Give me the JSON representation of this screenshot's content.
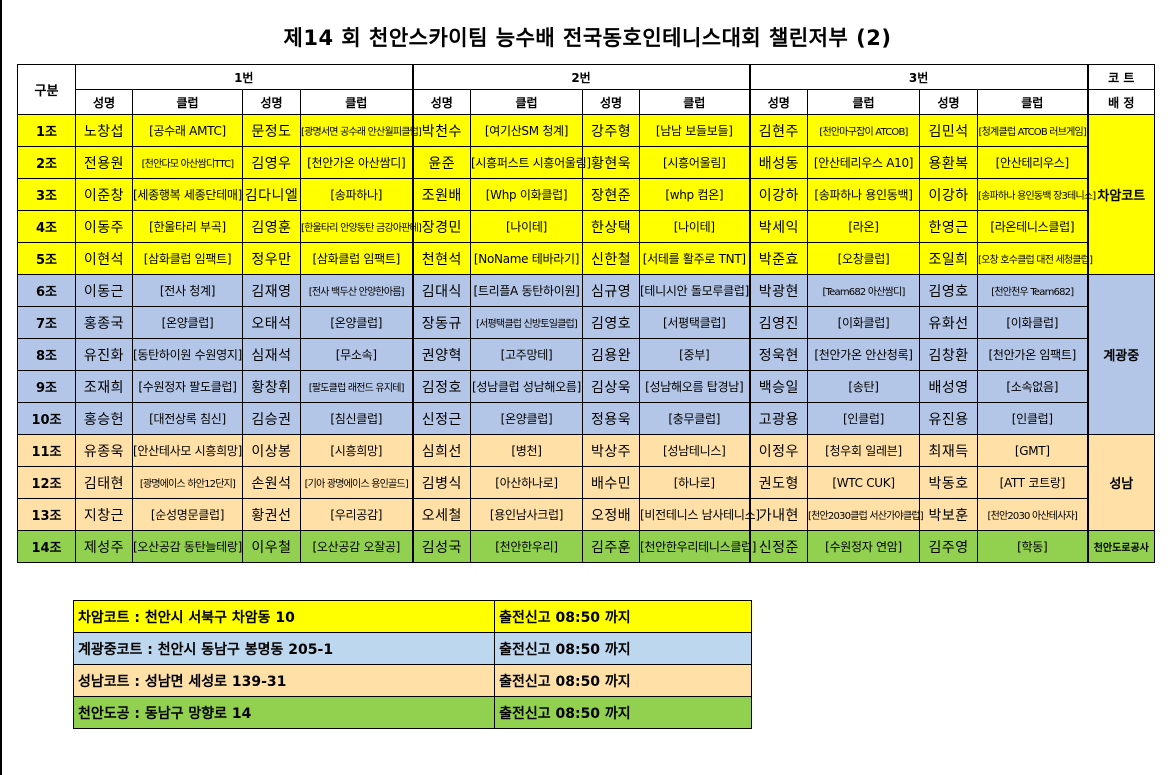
{
  "title": "제14 회 천안스카이팀 능수배 전국동호인테니스대회 챌린저부 (2)",
  "header": {
    "gubun": "구분",
    "groups": [
      "1번",
      "2번",
      "3번"
    ],
    "court_top": "코 트",
    "court_bottom": "배 정",
    "name": "성명",
    "club": "클럽"
  },
  "colors": {
    "yellow": "#ffff00",
    "blue": "#b4c6e7",
    "orange": "#ffe0a6",
    "green": "#92d050"
  },
  "rows": [
    {
      "group": "1조",
      "p1": "노창섭",
      "c1": "[공수래 AMTC]",
      "p2": "문정도",
      "c2": "[광명서면 공수래 안산월피클럽]",
      "p3": "박천수",
      "c3": "[여기산SM 청계]",
      "p4": "강주형",
      "c4": "[남남 보들보들]",
      "p5": "김현주",
      "c5": "[천안마구잡이 ATCOB]",
      "p6": "김민석",
      "c6": "[청계클럽 ATCOB 러브게임]"
    },
    {
      "group": "2조",
      "p1": "전용원",
      "c1": "[천안다모 아산쌈디TTC]",
      "p2": "김영우",
      "c2": "[천안가온 아산쌈디]",
      "p3": "윤준",
      "c3": "[시흥퍼스트 시흥어울림]",
      "p4": "황현욱",
      "c4": "[시흥어울림]",
      "p5": "배성동",
      "c5": "[안산테리우스 A10]",
      "p6": "용환복",
      "c6": "[안산테리우스]"
    },
    {
      "group": "3조",
      "p1": "이준창",
      "c1": "[세종행복 세종단테매]",
      "p2": "김다니엘",
      "c2": "[송파하나]",
      "p3": "조원배",
      "c3": "[Whp 이화클럽]",
      "p4": "장현준",
      "c4": "[whp 컴온]",
      "p5": "이강하",
      "c5": "[송파하나 용인동백]",
      "p6": "이강하",
      "c6": "[송파하나 용인동백 장3테니스]"
    },
    {
      "group": "4조",
      "p1": "이동주",
      "c1": "[한울타리 부곡]",
      "p2": "김영훈",
      "c2": "[한울타리 안양동탄 금강아판테]",
      "p3": "장경민",
      "c3": "[나이테]",
      "p4": "한상택",
      "c4": "[나이테]",
      "p5": "박세익",
      "c5": "[라온]",
      "p6": "한영근",
      "c6": "[라온테니스클럽]"
    },
    {
      "group": "5조",
      "p1": "이현석",
      "c1": "[삼화클럽 임팩트]",
      "p2": "정우만",
      "c2": "[삼화클럽 임팩트]",
      "p3": "천현석",
      "c3": "[NoName 테바라기]",
      "p4": "신한철",
      "c4": "[서테를 활주로 TNT]",
      "p5": "박준효",
      "c5": "[오창클럽]",
      "p6": "조일희",
      "c6": "[오창 호수클럽 대전 세청클럽]"
    },
    {
      "group": "6조",
      "p1": "이동근",
      "c1": "[전사 청계]",
      "p2": "김재영",
      "c2": "[전사 백두산 안양한아름]",
      "p3": "김대식",
      "c3": "[트리플A 동탄하이원]",
      "p4": "심규영",
      "c4": "[테니시안 돌모루클럽]",
      "p5": "박광현",
      "c5": "[Team682 아산쌈디]",
      "p6": "김영호",
      "c6": "[천안천우 Team682]"
    },
    {
      "group": "7조",
      "p1": "홍종국",
      "c1": "[온양클럽]",
      "p2": "오태석",
      "c2": "[온양클럽]",
      "p3": "장동규",
      "c3": "[서평택클럽 신방토일클럽]",
      "p4": "김영호",
      "c4": "[서평택클럽]",
      "p5": "김영진",
      "c5": "[이화클럽]",
      "p6": "유화선",
      "c6": "[이화클럽]"
    },
    {
      "group": "8조",
      "p1": "유진화",
      "c1": "[동탄하이원 수원영지]",
      "p2": "심재석",
      "c2": "[무소속]",
      "p3": "권양혁",
      "c3": "[고주망테]",
      "p4": "김용완",
      "c4": "[중부]",
      "p5": "정욱현",
      "c5": "[천안가온 안산청록]",
      "p6": "김창환",
      "c6": "[천안가온 임팩트]"
    },
    {
      "group": "9조",
      "p1": "조재희",
      "c1": "[수원정자 팔도클럽]",
      "p2": "황창휘",
      "c2": "[팔도클럽 래전드 유지테]",
      "p3": "김정호",
      "c3": "[성남클럽 성남해오름]",
      "p4": "김상욱",
      "c4": "[성남해오름 탑경남]",
      "p5": "백승일",
      "c5": "[송탄]",
      "p6": "배성영",
      "c6": "[소속없음]"
    },
    {
      "group": "10조",
      "p1": "홍승헌",
      "c1": "[대전상록 침신]",
      "p2": "김승권",
      "c2": "[침신클럽]",
      "p3": "신정근",
      "c3": "[온양클럽]",
      "p4": "정용욱",
      "c4": "[충무클럽]",
      "p5": "고광용",
      "c5": "[인클럽]",
      "p6": "유진용",
      "c6": "[인클럽]"
    },
    {
      "group": "11조",
      "p1": "유종욱",
      "c1": "[안산테사모 시흥희망]",
      "p2": "이상봉",
      "c2": "[시흥희망]",
      "p3": "심희선",
      "c3": "[병천]",
      "p4": "박상주",
      "c4": "[성남테니스]",
      "p5": "이정우",
      "c5": "[청우회 일레븐]",
      "p6": "최재득",
      "c6": "[GMT]"
    },
    {
      "group": "12조",
      "p1": "김태현",
      "c1": "[광명에이스 하안12단지]",
      "p2": "손원석",
      "c2": "[기아 광명에이스 용인골드]",
      "p3": "김병식",
      "c3": "[아산하나로]",
      "p4": "배수민",
      "c4": "[하나로]",
      "p5": "권도형",
      "c5": "[WTC CUK]",
      "p6": "박동호",
      "c6": "[ATT 코트랑]"
    },
    {
      "group": "13조",
      "p1": "지창근",
      "c1": "[순성명문클럽]",
      "p2": "황권선",
      "c2": "[우리공감]",
      "p3": "오세철",
      "c3": "[용인남사크럽]",
      "p4": "오정배",
      "c4": "[비전테니스 남사테니스]",
      "p5": "가내현",
      "c5": "[천안2030클럽 서산가야클럽]",
      "p6": "박보훈",
      "c6": "[천안2030 아산테사자]"
    },
    {
      "group": "14조",
      "p1": "제성주",
      "c1": "[오산공감 동탄늘테랑]",
      "p2": "이우철",
      "c2": "[오산공감 오잘공]",
      "p3": "김성국",
      "c3": "[천안한우리]",
      "p4": "김주훈",
      "c4": "[천안한우리테니스클럽]",
      "p5": "신정준",
      "c5": "[수원정자 연암]",
      "p6": "김주영",
      "c6": "[학동]"
    }
  ],
  "courts": {
    "c1": "차암코트",
    "c2": "계광중",
    "c3": "성남",
    "c4": "천안도로공사"
  },
  "legend": [
    {
      "address": "차암코트 : 천안시 서북구 차암동 10",
      "checkin": "출전신고 08:50 까지",
      "color": "#ffff00"
    },
    {
      "address": "계광중코트 : 천안시 동남구 봉명동 205-1",
      "checkin": "출전신고 08:50 까지",
      "color": "#bdd7ee"
    },
    {
      "address": "성남코트 : 성남면 세성로 139-31",
      "checkin": "출전신고 08:50 까지",
      "color": "#ffe0a6"
    },
    {
      "address": "천안도공 : 동남구 망향로 14",
      "checkin": "출전신고 08:50 까지",
      "color": "#92d050"
    }
  ]
}
